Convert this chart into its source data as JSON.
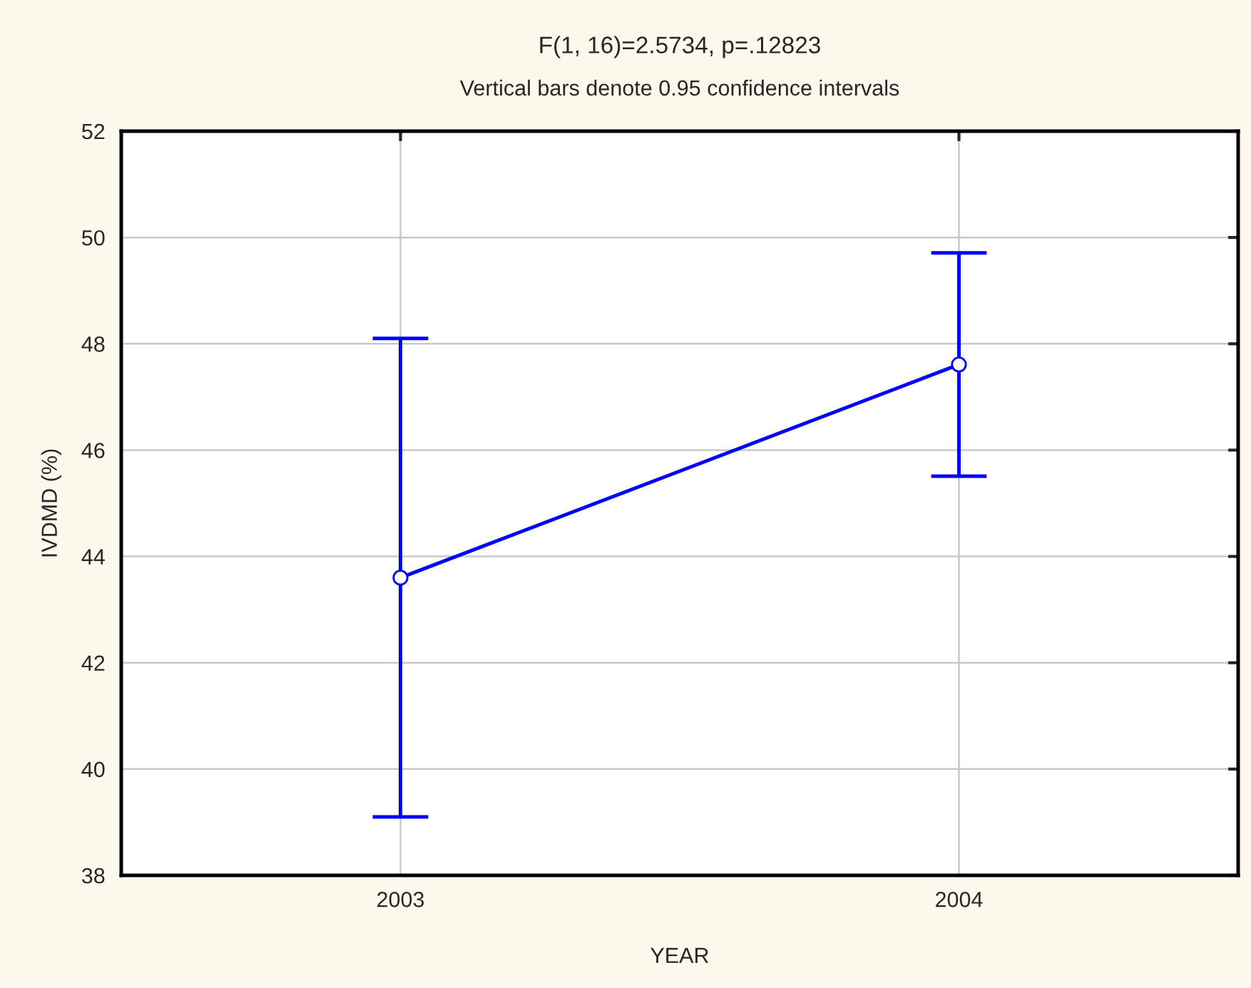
{
  "chart_data": {
    "type": "line",
    "title": "F(1, 16)=2.5734, p=.12823",
    "subtitle": "Vertical bars denote 0.95 confidence intervals",
    "xlabel": "YEAR",
    "ylabel": "IVDMD (%)",
    "categories": [
      "2003",
      "2004"
    ],
    "series": [
      {
        "color": "#0000ff",
        "values": [
          43.6,
          47.61
        ],
        "errors": [
          4.5,
          2.1
        ]
      }
    ],
    "ylim": [
      38,
      52
    ],
    "yticks": [
      38,
      40,
      42,
      44,
      46,
      48,
      50,
      52
    ],
    "grid": true,
    "marker": "circle",
    "line_style": "solid"
  }
}
